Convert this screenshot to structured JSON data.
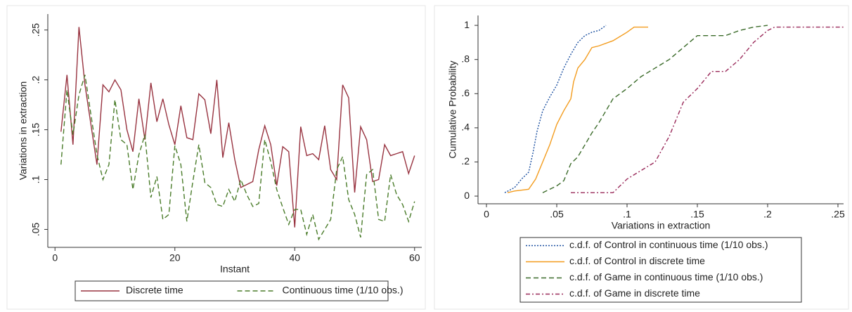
{
  "chart_data": [
    {
      "type": "line",
      "x_label": "Instant",
      "y_label": "Variations in extraction",
      "x": [
        1,
        2,
        3,
        4,
        5,
        6,
        7,
        8,
        9,
        10,
        11,
        12,
        13,
        14,
        15,
        16,
        17,
        18,
        19,
        20,
        21,
        22,
        23,
        24,
        25,
        26,
        27,
        28,
        29,
        30,
        31,
        32,
        33,
        34,
        35,
        36,
        37,
        38,
        39,
        40,
        41,
        42,
        43,
        44,
        45,
        46,
        47,
        48,
        49,
        50,
        51,
        52,
        53,
        54,
        55,
        56,
        57,
        58,
        59,
        60
      ],
      "xlim": [
        -1.2,
        61.2
      ],
      "xticks": [
        0,
        20,
        40,
        60
      ],
      "ylim": [
        0.032,
        0.266
      ],
      "yticks": [
        {
          "value": 0.05,
          "label": ".05"
        },
        {
          "value": 0.1,
          "label": ".1"
        },
        {
          "value": 0.15,
          "label": ".15"
        },
        {
          "value": 0.2,
          "label": ".2"
        },
        {
          "value": 0.25,
          "label": ".25"
        }
      ],
      "legend": "bottom",
      "legend_columns": 2,
      "series": [
        {
          "name": "Discrete time",
          "color": "#983340",
          "dash": "solid",
          "values": [
            0.148,
            0.205,
            0.135,
            0.253,
            0.195,
            0.155,
            0.115,
            0.195,
            0.188,
            0.2,
            0.19,
            0.15,
            0.128,
            0.181,
            0.14,
            0.197,
            0.158,
            0.181,
            0.155,
            0.135,
            0.174,
            0.142,
            0.14,
            0.186,
            0.18,
            0.146,
            0.2,
            0.122,
            0.157,
            0.12,
            0.092,
            0.095,
            0.098,
            0.13,
            0.154,
            0.135,
            0.094,
            0.133,
            0.128,
            0.052,
            0.153,
            0.124,
            0.126,
            0.12,
            0.154,
            0.11,
            0.1,
            0.195,
            0.182,
            0.087,
            0.153,
            0.14,
            0.098,
            0.1,
            0.135,
            0.124,
            0.126,
            0.128,
            0.106,
            0.124
          ]
        },
        {
          "name": "Continuous time (1/10 obs.)",
          "color": "#4a7c2a",
          "dash": "dashed",
          "values": [
            0.115,
            0.19,
            0.145,
            0.185,
            0.205,
            0.165,
            0.125,
            0.1,
            0.115,
            0.18,
            0.14,
            0.135,
            0.09,
            0.125,
            0.145,
            0.082,
            0.103,
            0.06,
            0.065,
            0.134,
            0.115,
            0.058,
            0.098,
            0.135,
            0.097,
            0.092,
            0.075,
            0.073,
            0.09,
            0.078,
            0.1,
            0.085,
            0.073,
            0.076,
            0.14,
            0.118,
            0.09,
            0.072,
            0.055,
            0.07,
            0.07,
            0.045,
            0.065,
            0.04,
            0.05,
            0.06,
            0.11,
            0.123,
            0.08,
            0.065,
            0.042,
            0.105,
            0.11,
            0.06,
            0.058,
            0.105,
            0.085,
            0.075,
            0.058,
            0.078
          ]
        }
      ]
    },
    {
      "type": "line",
      "x_label": "Variations in extraction",
      "y_label": "Cumulative Probability",
      "xlim": [
        -0.006,
        0.254
      ],
      "xticks": [
        0,
        {
          "value": 0.05,
          "label": ".05"
        },
        {
          "value": 0.1,
          "label": ".1"
        },
        {
          "value": 0.15,
          "label": ".15"
        },
        {
          "value": 0.2,
          "label": ".2"
        },
        {
          "value": 0.25,
          "label": ".25"
        }
      ],
      "ylim": [
        -0.045,
        1.058
      ],
      "yticks": [
        0,
        {
          "value": 0.2,
          "label": ".2"
        },
        {
          "value": 0.4,
          "label": ".4"
        },
        {
          "value": 0.6,
          "label": ".6"
        },
        {
          "value": 0.8,
          "label": ".8"
        },
        1
      ],
      "legend": "bottom",
      "legend_columns": 1,
      "series": [
        {
          "name": "c.d.f. of  Control in continuous time (1/10 obs.)",
          "color": "#1a4fa0",
          "dash": "dotted",
          "x": [
            0.013,
            0.02,
            0.025,
            0.03,
            0.033,
            0.036,
            0.04,
            0.045,
            0.05,
            0.055,
            0.06,
            0.065,
            0.07,
            0.075,
            0.08,
            0.085
          ],
          "values": [
            0.02,
            0.05,
            0.1,
            0.14,
            0.25,
            0.38,
            0.5,
            0.58,
            0.65,
            0.75,
            0.83,
            0.9,
            0.94,
            0.96,
            0.97,
            1
          ]
        },
        {
          "name": "c.d.f. of  Control in discrete time",
          "color": "#f39c1e",
          "dash": "solid",
          "x": [
            0.015,
            0.02,
            0.03,
            0.035,
            0.04,
            0.045,
            0.05,
            0.055,
            0.06,
            0.062,
            0.065,
            0.07,
            0.075,
            0.08,
            0.09,
            0.1,
            0.105,
            0.115
          ],
          "values": [
            0.02,
            0.03,
            0.04,
            0.1,
            0.2,
            0.3,
            0.42,
            0.5,
            0.57,
            0.67,
            0.75,
            0.8,
            0.87,
            0.88,
            0.91,
            0.96,
            0.99,
            0.99
          ]
        },
        {
          "name": "c.d.f. of  Game in continuous time (1/10 obs.)",
          "color": "#3b6b2a",
          "dash": "dashed",
          "x": [
            0.04,
            0.045,
            0.05,
            0.055,
            0.06,
            0.065,
            0.07,
            0.075,
            0.08,
            0.085,
            0.09,
            0.1,
            0.11,
            0.12,
            0.13,
            0.14,
            0.15,
            0.17,
            0.18,
            0.19,
            0.2
          ],
          "values": [
            0.02,
            0.04,
            0.06,
            0.09,
            0.19,
            0.23,
            0.3,
            0.37,
            0.43,
            0.5,
            0.57,
            0.63,
            0.7,
            0.75,
            0.8,
            0.87,
            0.94,
            0.94,
            0.97,
            0.99,
            1
          ]
        },
        {
          "name": "c.d.f. of  Game in discrete time",
          "color": "#9a2a5a",
          "dash": "dashdot",
          "x": [
            0.06,
            0.09,
            0.1,
            0.11,
            0.12,
            0.13,
            0.14,
            0.15,
            0.16,
            0.17,
            0.18,
            0.19,
            0.2,
            0.205,
            0.255
          ],
          "values": [
            0.02,
            0.02,
            0.1,
            0.15,
            0.2,
            0.35,
            0.55,
            0.63,
            0.73,
            0.73,
            0.8,
            0.9,
            0.97,
            0.99,
            0.99
          ]
        }
      ]
    }
  ]
}
